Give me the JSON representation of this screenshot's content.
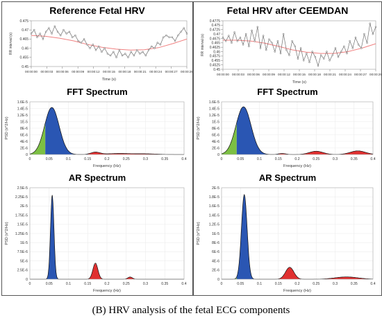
{
  "caption": "(B) HRV analysis of the fetal ECG components",
  "colors": {
    "lf_green": "#7cc043",
    "mf_blue": "#2a56b3",
    "hf_red": "#e03030",
    "hrv_line": "#707070",
    "trend": "#f08080"
  },
  "chart_data": [
    {
      "id": "ref_hrv",
      "type": "line",
      "title": "Reference Fetal HRV",
      "xlabel": "Time (s)",
      "ylabel": "RR interval (s)",
      "ylim": [
        0.45,
        0.475
      ],
      "yticks": [
        "0.475",
        "0.47",
        "0.465",
        "0.46",
        "0.455",
        "0.45"
      ],
      "xticks": [
        "00:00:00",
        "00:00:03",
        "00:00:06",
        "00:00:09",
        "00:00:12",
        "00:00:15",
        "00:00:18",
        "00:00:21",
        "00:00:24",
        "00:00:27",
        "00:00:29"
      ],
      "series": [
        {
          "kind": "rr",
          "values": [
            0.468,
            0.47,
            0.466,
            0.468,
            0.465,
            0.469,
            0.471,
            0.468,
            0.472,
            0.469,
            0.467,
            0.47,
            0.468,
            0.469,
            0.466,
            0.467,
            0.464,
            0.463,
            0.465,
            0.462,
            0.46,
            0.462,
            0.459,
            0.461,
            0.458,
            0.46,
            0.457,
            0.456,
            0.458,
            0.455,
            0.459,
            0.456,
            0.457,
            0.455,
            0.458,
            0.456,
            0.459,
            0.457,
            0.458,
            0.456,
            0.459,
            0.461,
            0.46,
            0.463,
            0.462,
            0.466,
            0.467,
            0.466,
            0.466,
            0.464,
            0.467,
            0.469,
            0.471,
            0.468
          ]
        },
        {
          "kind": "trend",
          "values": [
            0.467,
            0.4665,
            0.4655,
            0.464,
            0.462,
            0.4605,
            0.4595,
            0.459,
            0.4592,
            0.4603,
            0.4625,
            0.465
          ]
        }
      ]
    },
    {
      "id": "ceemdan_hrv",
      "type": "line",
      "title": "Fetal HRV after CEEMDAN",
      "xlabel": "Time (s)",
      "ylabel": "RR interval (s)",
      "ylim": [
        0.45,
        0.4775
      ],
      "yticks": [
        "0.4775",
        "0.475",
        "0.4725",
        "0.47",
        "0.4675",
        "0.465",
        "0.4625",
        "0.46",
        "0.4575",
        "0.455",
        "0.4525",
        "0.45"
      ],
      "xticks": [
        "00:00:00",
        "00:00:03",
        "00:00:06",
        "00:00:09",
        "00:00:12",
        "00:00:15",
        "00:00:18",
        "00:00:21",
        "00:00:24",
        "00:00:27",
        "00:00:29"
      ],
      "series": [
        {
          "kind": "rr",
          "values": [
            0.468,
            0.466,
            0.469,
            0.465,
            0.471,
            0.466,
            0.468,
            0.464,
            0.47,
            0.463,
            0.472,
            0.466,
            0.474,
            0.462,
            0.469,
            0.461,
            0.467,
            0.465,
            0.46,
            0.466,
            0.459,
            0.47,
            0.461,
            0.458,
            0.466,
            0.463,
            0.456,
            0.462,
            0.455,
            0.459,
            0.454,
            0.46,
            0.457,
            0.452,
            0.458,
            0.456,
            0.46,
            0.455,
            0.458,
            0.462,
            0.457,
            0.46,
            0.463,
            0.459,
            0.466,
            0.462,
            0.468,
            0.464,
            0.462,
            0.47,
            0.465,
            0.476,
            0.47,
            0.474
          ]
        },
        {
          "kind": "trend",
          "values": [
            0.4665,
            0.4665,
            0.466,
            0.4648,
            0.463,
            0.461,
            0.4597,
            0.459,
            0.459,
            0.46,
            0.462,
            0.4645
          ]
        }
      ]
    },
    {
      "id": "fft_left",
      "type": "area",
      "title": "FFT Spectrum",
      "xlabel": "Frequency (Hz)",
      "ylabel": "PSD (s^2/Hz)",
      "xlim": [
        0,
        0.4
      ],
      "ylim": [
        0,
        1.6e-05
      ],
      "yticks": [
        "1.6E-5",
        "1.4E-5",
        "1.2E-5",
        "1E-5",
        "8E-6",
        "6E-6",
        "4E-6",
        "2E-6",
        "0"
      ],
      "xticks": [
        "0",
        "0.05",
        "0.1",
        "0.15",
        "0.2",
        "0.25",
        "0.3",
        "0.35",
        "0.4"
      ],
      "bands": [
        {
          "from": 0,
          "to": 0.04,
          "color": "lf_green"
        },
        {
          "from": 0.04,
          "to": 0.15,
          "color": "mf_blue"
        },
        {
          "from": 0.15,
          "to": 0.4,
          "color": "hf_red"
        }
      ],
      "peaks": [
        {
          "f": 0.057,
          "a": 1.43e-05,
          "w": 0.019
        },
        {
          "f": 0.17,
          "a": 7e-07,
          "w": 0.012
        },
        {
          "f": 0.23,
          "a": 3e-07,
          "w": 0.03
        },
        {
          "f": 0.3,
          "a": 2e-07,
          "w": 0.03
        }
      ]
    },
    {
      "id": "fft_right",
      "type": "area",
      "title": "FFT Spectrum",
      "xlabel": "Frequency (Hz)",
      "ylabel": "PSD (s^2/Hz)",
      "xlim": [
        0,
        0.4
      ],
      "ylim": [
        0,
        1.6e-05
      ],
      "yticks": [
        "1.6E-5",
        "1.4E-5",
        "1.2E-5",
        "1E-5",
        "8E-6",
        "6E-6",
        "4E-6",
        "2E-6",
        "0"
      ],
      "xticks": [
        "0",
        "0.05",
        "0.1",
        "0.15",
        "0.2",
        "0.25",
        "0.3",
        "0.35",
        "0.4"
      ],
      "bands": [
        {
          "from": 0,
          "to": 0.04,
          "color": "lf_green"
        },
        {
          "from": 0.04,
          "to": 0.15,
          "color": "mf_blue"
        },
        {
          "from": 0.15,
          "to": 0.4,
          "color": "hf_red"
        }
      ],
      "peaks": [
        {
          "f": 0.058,
          "a": 1.45e-05,
          "w": 0.02
        },
        {
          "f": 0.16,
          "a": 3e-07,
          "w": 0.01
        },
        {
          "f": 0.25,
          "a": 1e-06,
          "w": 0.018
        },
        {
          "f": 0.36,
          "a": 1.1e-06,
          "w": 0.02
        }
      ]
    },
    {
      "id": "ar_left",
      "type": "area",
      "title": "AR Spectrum",
      "xlabel": "Frequency (Hz)",
      "ylabel": "PSD (s^2/Hz)",
      "xlim": [
        0,
        0.4
      ],
      "ylim": [
        0,
        2.5e-05
      ],
      "yticks": [
        "2.5E-5",
        "2.25E-5",
        "2E-5",
        "1.75E-5",
        "1.5E-5",
        "1.25E-5",
        "1E-5",
        "7.5E-6",
        "5E-6",
        "2.5E-6",
        "0"
      ],
      "xticks": [
        "0",
        "0.05",
        "0.1",
        "0.15",
        "0.2",
        "0.25",
        "0.3",
        "0.35",
        "0.4"
      ],
      "bands": [
        {
          "from": 0,
          "to": 0.04,
          "color": "lf_green"
        },
        {
          "from": 0.04,
          "to": 0.15,
          "color": "mf_blue"
        },
        {
          "from": 0.15,
          "to": 0.4,
          "color": "hf_red"
        }
      ],
      "peaks": [
        {
          "f": 0.058,
          "a": 2.3e-05,
          "w": 0.0045
        },
        {
          "f": 0.17,
          "a": 4.4e-06,
          "w": 0.0065
        },
        {
          "f": 0.26,
          "a": 6e-07,
          "w": 0.006
        }
      ]
    },
    {
      "id": "ar_right",
      "type": "area",
      "title": "AR Spectrum",
      "xlabel": "Frequency (Hz)",
      "ylabel": "PSD (s^2/Hz)",
      "xlim": [
        0,
        0.4
      ],
      "ylim": [
        0,
        2e-05
      ],
      "yticks": [
        "2E-5",
        "1.8E-5",
        "1.6E-5",
        "1.4E-5",
        "1.2E-5",
        "1E-5",
        "8E-6",
        "6E-6",
        "4E-6",
        "2E-6",
        "0"
      ],
      "xticks": [
        "0",
        "0.05",
        "0.1",
        "0.15",
        "0.2",
        "0.25",
        "0.3",
        "0.35",
        "0.4"
      ],
      "bands": [
        {
          "from": 0,
          "to": 0.04,
          "color": "lf_green"
        },
        {
          "from": 0.04,
          "to": 0.15,
          "color": "mf_blue"
        },
        {
          "from": 0.15,
          "to": 0.4,
          "color": "hf_red"
        }
      ],
      "peaks": [
        {
          "f": 0.06,
          "a": 1.85e-05,
          "w": 0.0075
        },
        {
          "f": 0.18,
          "a": 2.6e-06,
          "w": 0.011
        },
        {
          "f": 0.33,
          "a": 5e-07,
          "w": 0.03
        }
      ]
    }
  ]
}
